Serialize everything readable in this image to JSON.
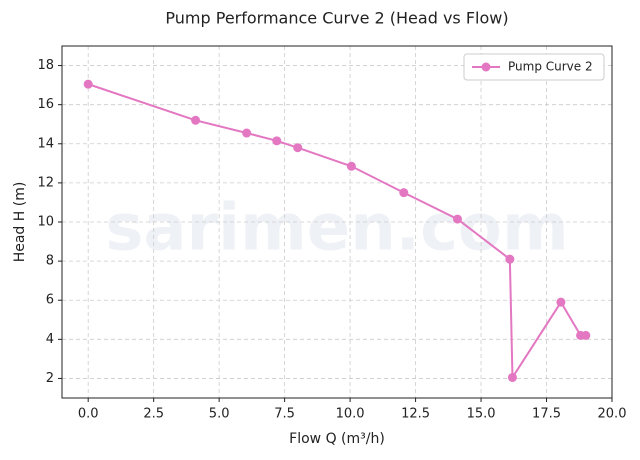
{
  "chart_data": {
    "type": "line",
    "title": "Pump Performance Curve 2 (Head vs Flow)",
    "xlabel": "Flow Q (m³/h)",
    "ylabel": "Head H (m)",
    "watermark": "sarimen.com",
    "x": [
      0,
      4.1,
      6.05,
      7.2,
      8,
      10.05,
      12.05,
      14.1,
      16.1,
      16.2,
      18.05,
      18.8,
      19
    ],
    "series": [
      {
        "name": "Pump Curve 2",
        "color": "#e377c2",
        "values": [
          17.05,
          15.2,
          14.55,
          14.15,
          13.8,
          12.85,
          11.5,
          10.15,
          8.1,
          2.05,
          5.9,
          4.2,
          4.2
        ]
      }
    ],
    "xlim": [
      -1,
      20
    ],
    "ylim": [
      1,
      19
    ],
    "xticks": [
      {
        "value": 0,
        "label": "0.0"
      },
      {
        "value": 2.5,
        "label": "2.5"
      },
      {
        "value": 5,
        "label": "5.0"
      },
      {
        "value": 7.5,
        "label": "7.5"
      },
      {
        "value": 10,
        "label": "10.0"
      },
      {
        "value": 12.5,
        "label": "12.5"
      },
      {
        "value": 15,
        "label": "15.0"
      },
      {
        "value": 17.5,
        "label": "17.5"
      },
      {
        "value": 20,
        "label": "20.0"
      }
    ],
    "yticks": [
      2,
      4,
      6,
      8,
      10,
      12,
      14,
      16,
      18
    ],
    "grid": true,
    "legend": "upper right"
  }
}
